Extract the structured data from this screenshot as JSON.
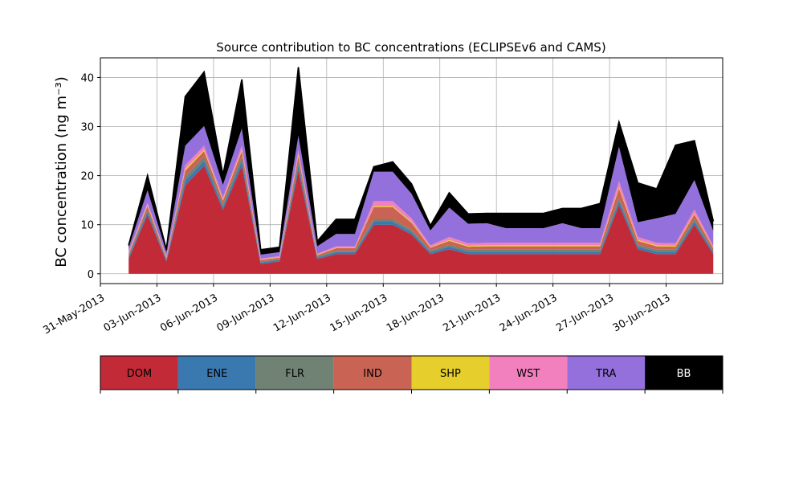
{
  "chart_data": {
    "type": "area",
    "stacked": true,
    "title": "Source contribution to BC concentrations (ECLIPSEv6 and CAMS)",
    "ylabel": "BC concentration (ng m⁻³)",
    "xlabel": "",
    "ylim": [
      -2,
      44
    ],
    "xlim": [
      "2013-05-31",
      "2013-07-03"
    ],
    "yticks": [
      0,
      10,
      20,
      30,
      40
    ],
    "xtick_labels": [
      "31-May-2013",
      "03-Jun-2013",
      "06-Jun-2013",
      "09-Jun-2013",
      "12-Jun-2013",
      "15-Jun-2013",
      "18-Jun-2013",
      "21-Jun-2013",
      "24-Jun-2013",
      "27-Jun-2013",
      "30-Jun-2013"
    ],
    "xtick_dates": [
      "2013-05-31",
      "2013-06-03",
      "2013-06-06",
      "2013-06-09",
      "2013-06-12",
      "2013-06-15",
      "2013-06-18",
      "2013-06-21",
      "2013-06-24",
      "2013-06-27",
      "2013-06-30"
    ],
    "grid": true,
    "dates": [
      "2013-06-01",
      "2013-06-02",
      "2013-06-03",
      "2013-06-04",
      "2013-06-05",
      "2013-06-06",
      "2013-06-07",
      "2013-06-08",
      "2013-06-09",
      "2013-06-10",
      "2013-06-11",
      "2013-06-12",
      "2013-06-13",
      "2013-06-14",
      "2013-06-15",
      "2013-06-16",
      "2013-06-17",
      "2013-06-18",
      "2013-06-19",
      "2013-06-20",
      "2013-06-21",
      "2013-06-22",
      "2013-06-23",
      "2013-06-24",
      "2013-06-25",
      "2013-06-26",
      "2013-06-27",
      "2013-06-28",
      "2013-06-29",
      "2013-06-30",
      "2013-07-01",
      "2013-07-02"
    ],
    "series": [
      {
        "name": "DOM",
        "color": "#c22a37",
        "values": [
          3,
          12,
          2.5,
          18,
          22,
          13,
          22,
          2,
          2.5,
          21,
          3,
          4,
          4,
          10,
          10,
          8,
          4,
          5,
          4,
          4,
          4,
          4,
          4,
          4,
          4,
          4,
          14,
          5,
          4,
          4,
          10,
          4
        ]
      },
      {
        "name": "ENE",
        "color": "#3a78b0",
        "values": [
          0.4,
          0.6,
          0.3,
          1.0,
          1.0,
          0.6,
          1.0,
          0.3,
          0.3,
          1.0,
          0.3,
          0.4,
          0.4,
          0.6,
          0.6,
          0.5,
          0.4,
          0.5,
          0.5,
          0.5,
          0.5,
          0.5,
          0.5,
          0.5,
          0.5,
          0.5,
          0.8,
          0.5,
          0.5,
          0.5,
          0.6,
          0.4
        ]
      },
      {
        "name": "FLR",
        "color": "#6f8273",
        "values": [
          0.3,
          0.5,
          0.2,
          0.8,
          0.8,
          0.5,
          0.8,
          0.2,
          0.2,
          0.8,
          0.2,
          0.3,
          0.3,
          0.5,
          0.5,
          0.4,
          0.3,
          0.4,
          0.4,
          0.4,
          0.4,
          0.4,
          0.4,
          0.4,
          0.4,
          0.4,
          0.6,
          0.4,
          0.4,
          0.4,
          0.5,
          0.3
        ]
      },
      {
        "name": "IND",
        "color": "#c96455",
        "values": [
          0.4,
          0.7,
          0.3,
          1.2,
          1.2,
          0.8,
          1.2,
          0.3,
          0.3,
          1.2,
          0.3,
          0.5,
          0.5,
          2.5,
          2.5,
          1.5,
          0.6,
          0.8,
          0.6,
          0.7,
          0.7,
          0.7,
          0.7,
          0.7,
          0.7,
          0.7,
          2.0,
          0.8,
          0.7,
          0.6,
          1.0,
          0.5
        ]
      },
      {
        "name": "SHP",
        "color": "#e6cf2d",
        "values": [
          0.1,
          0.2,
          0.1,
          0.3,
          0.3,
          0.2,
          0.3,
          0.1,
          0.1,
          0.3,
          0.1,
          0.1,
          0.1,
          0.2,
          0.2,
          0.2,
          0.1,
          0.2,
          0.2,
          0.2,
          0.2,
          0.2,
          0.2,
          0.2,
          0.2,
          0.2,
          0.3,
          0.2,
          0.2,
          0.2,
          0.2,
          0.1
        ]
      },
      {
        "name": "WST",
        "color": "#f27fbe",
        "values": [
          0.3,
          0.5,
          0.2,
          0.8,
          0.8,
          0.5,
          0.8,
          0.2,
          0.2,
          0.8,
          0.2,
          0.3,
          0.3,
          1.0,
          1.0,
          0.7,
          0.4,
          0.6,
          0.5,
          0.5,
          0.5,
          0.5,
          0.5,
          0.5,
          0.5,
          0.5,
          1.2,
          0.6,
          0.5,
          0.5,
          0.8,
          0.4
        ]
      },
      {
        "name": "TRA",
        "color": "#9370db",
        "values": [
          0.8,
          2.5,
          0.8,
          4,
          4,
          2.5,
          3.5,
          0.8,
          0.8,
          3,
          1.5,
          2.5,
          2.5,
          6,
          6,
          5,
          3,
          6,
          4,
          4,
          3,
          3,
          3,
          4,
          3,
          3,
          7,
          3,
          5,
          6,
          6,
          3
        ]
      },
      {
        "name": "BB",
        "color": "#000000",
        "values": [
          0.5,
          3,
          0.5,
          10,
          11,
          2,
          10,
          1,
          1,
          14,
          1,
          3,
          3,
          1,
          2,
          2,
          1,
          3,
          2,
          2,
          3,
          3,
          3,
          3,
          4,
          5,
          5,
          8,
          6,
          14,
          8,
          2
        ]
      }
    ],
    "legend": {
      "placement": "below",
      "entries": [
        "DOM",
        "ENE",
        "FLR",
        "IND",
        "SHP",
        "WST",
        "TRA",
        "BB"
      ]
    }
  }
}
